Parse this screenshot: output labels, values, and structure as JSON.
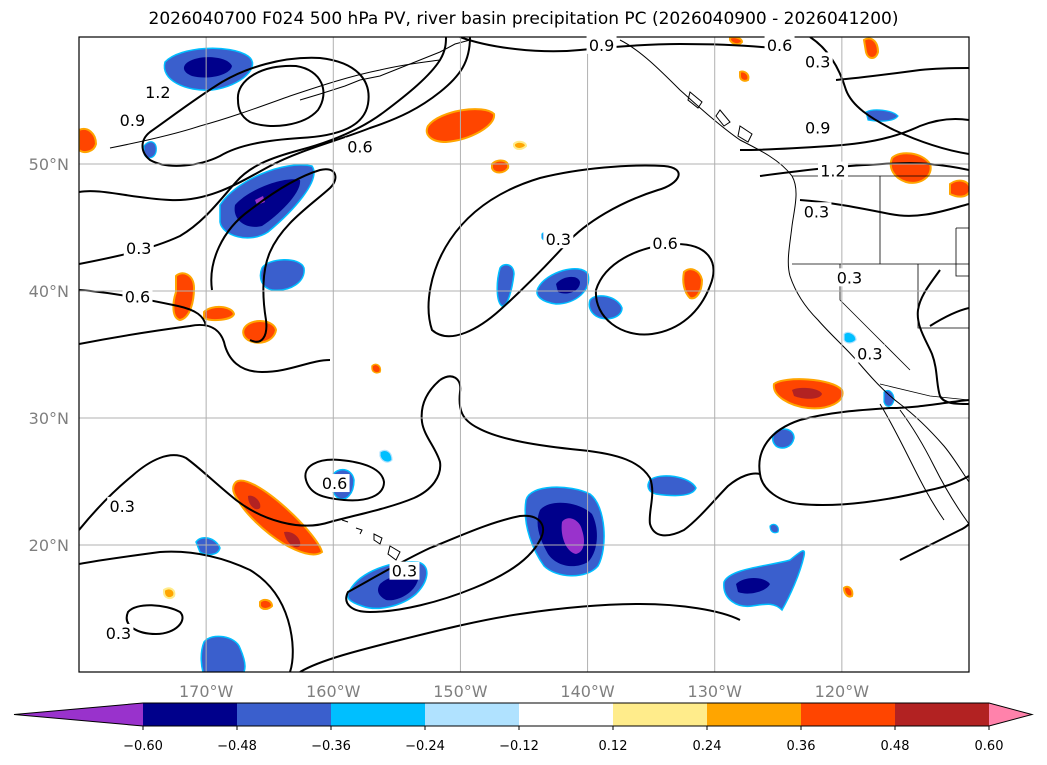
{
  "chart_data": {
    "type": "heatmap",
    "title": "2026040700 F024 500 hPa PV, river basin precipitation PC (2026040900 - 2026041200)",
    "map": {
      "lon_range": [
        -180,
        -110
      ],
      "lat_range": [
        10,
        60
      ],
      "x_ticks": [
        {
          "value": -170,
          "label": "170°W"
        },
        {
          "value": -160,
          "label": "160°W"
        },
        {
          "value": -150,
          "label": "150°W"
        },
        {
          "value": -140,
          "label": "140°W"
        },
        {
          "value": -130,
          "label": "130°W"
        },
        {
          "value": -120,
          "label": "120°W"
        }
      ],
      "y_ticks": [
        {
          "value": 20,
          "label": "20°N"
        },
        {
          "value": 30,
          "label": "30°N"
        },
        {
          "value": 40,
          "label": "40°N"
        },
        {
          "value": 50,
          "label": "50°N"
        }
      ],
      "grid": true
    },
    "colorbar": {
      "boundaries": [
        -0.72,
        -0.6,
        -0.48,
        -0.36,
        -0.24,
        -0.12,
        0.12,
        0.24,
        0.36,
        0.48,
        0.6,
        0.72
      ],
      "colors": [
        "#9932cc",
        "#00008b",
        "#3a5fcd",
        "#00bfff",
        "#b0e2ff",
        "#ffffff",
        "#ffec8b",
        "#ffa500",
        "#ff4500",
        "#b22222",
        "#ff82ab"
      ],
      "tick_labels": [
        "−0.60",
        "−0.48",
        "−0.36",
        "−0.24",
        "−0.12",
        "0.12",
        "0.24",
        "0.36",
        "0.48",
        "0.60"
      ],
      "extend": "both"
    },
    "contour_labels": [
      {
        "text": "0.9",
        "lon": -175.8,
        "lat": 53.4
      },
      {
        "text": "1.2",
        "lon": -173.8,
        "lat": 55.6
      },
      {
        "text": "0.6",
        "lon": -157.9,
        "lat": 51.3
      },
      {
        "text": "0.3",
        "lon": -175.3,
        "lat": 43.3
      },
      {
        "text": "0.6",
        "lon": -175.4,
        "lat": 39.5
      },
      {
        "text": "0.3",
        "lon": -142.3,
        "lat": 44.0
      },
      {
        "text": "0.6",
        "lon": -133.9,
        "lat": 43.7
      },
      {
        "text": "0.9",
        "lon": -138.9,
        "lat": 59.3
      },
      {
        "text": "0.6",
        "lon": -124.9,
        "lat": 59.3
      },
      {
        "text": "0.3",
        "lon": -121.9,
        "lat": 58.0
      },
      {
        "text": "0.9",
        "lon": -121.9,
        "lat": 52.8
      },
      {
        "text": "1.2",
        "lon": -120.7,
        "lat": 49.4
      },
      {
        "text": "0.3",
        "lon": -122.0,
        "lat": 46.2
      },
      {
        "text": "0.3",
        "lon": -119.4,
        "lat": 41.0
      },
      {
        "text": "0.3",
        "lon": -117.8,
        "lat": 35.0
      },
      {
        "text": "0.6",
        "lon": -159.9,
        "lat": 24.8
      },
      {
        "text": "0.3",
        "lon": -176.6,
        "lat": 23.0
      },
      {
        "text": "0.3",
        "lon": -176.9,
        "lat": 13.0
      },
      {
        "text": "0.3",
        "lon": -154.4,
        "lat": 17.9
      }
    ]
  }
}
